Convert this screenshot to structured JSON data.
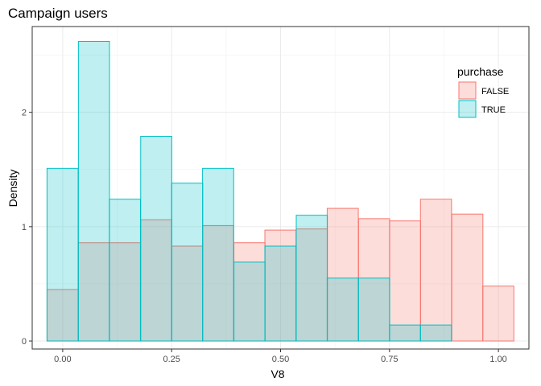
{
  "chart_data": {
    "type": "bar",
    "subtype": "overlaid-histogram",
    "title": "Campaign users",
    "xlabel": "V8",
    "ylabel": "Density",
    "xlim": [
      -0.07,
      1.07
    ],
    "ylim": [
      -0.07,
      2.75
    ],
    "x_ticks": [
      0.0,
      0.25,
      0.5,
      0.75,
      1.0
    ],
    "x_tick_labels": [
      "0.00",
      "0.25",
      "0.50",
      "0.75",
      "1.00"
    ],
    "y_ticks": [
      0,
      1,
      2
    ],
    "y_tick_labels": [
      "0",
      "1",
      "2"
    ],
    "grid": true,
    "legend_position": "top-right",
    "legend_title": "purchase",
    "bins": {
      "starts": [
        -0.036,
        0.036,
        0.107,
        0.179,
        0.25,
        0.321,
        0.393,
        0.464,
        0.536,
        0.607,
        0.679,
        0.75,
        0.821,
        0.893,
        0.964
      ],
      "width": 0.0714
    },
    "series": [
      {
        "name": "FALSE",
        "color": "#f8766d",
        "fill": "#f8766d",
        "fill_opacity": 0.25,
        "values": [
          0.45,
          0.86,
          0.86,
          1.06,
          0.83,
          1.01,
          0.86,
          0.97,
          0.98,
          1.16,
          1.07,
          1.05,
          1.24,
          1.11,
          0.48
        ]
      },
      {
        "name": "TRUE",
        "color": "#00bfc4",
        "fill": "#00bfc4",
        "fill_opacity": 0.25,
        "values": [
          1.51,
          2.62,
          1.24,
          1.79,
          1.38,
          1.51,
          0.69,
          0.83,
          1.1,
          0.55,
          0.55,
          0.14,
          0.14,
          0.0,
          0.0
        ]
      }
    ]
  }
}
